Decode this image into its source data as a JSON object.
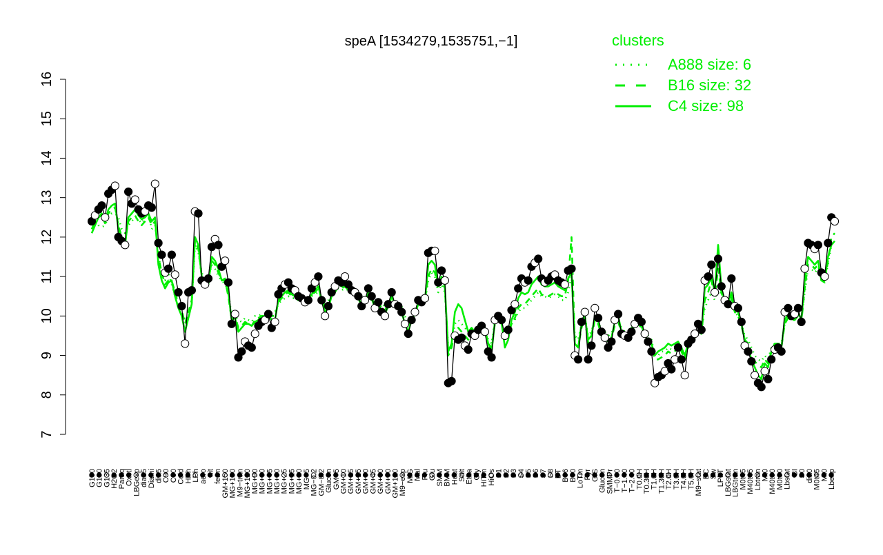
{
  "chart_data": {
    "type": "line",
    "title": "speA [1534279,1535751,−1]",
    "xlabel": "",
    "ylabel": "",
    "ylim": [
      7,
      16
    ],
    "yticks": [
      "7",
      "8",
      "9",
      "10",
      "11",
      "12",
      "13",
      "14",
      "15",
      "16"
    ],
    "grid": false,
    "legend_position": "top-right",
    "legend_title": "clusters",
    "colors": {
      "cluster": "#00ee00",
      "points_line": "#000000",
      "point_fill_open": "#ffffff",
      "point_fill_solid": "#000000"
    },
    "legend": [
      {
        "label": "A888 size: 6",
        "style": "dotted"
      },
      {
        "label": "B16 size: 32",
        "style": "dashed"
      },
      {
        "label": "C4 size: 98",
        "style": "solid"
      }
    ],
    "x_tick_labels": [
      "G150",
      "G180",
      "G135",
      "H2O2",
      "Paraq",
      "Oxctl",
      "LBGexp",
      "dia15",
      "Diami",
      "dia5",
      "C90",
      "C30",
      "Cold",
      "HPh",
      "LPh",
      "aero",
      "nit",
      "ferm",
      "GM+150",
      "MG+150",
      "M9−tran",
      "MG+120",
      "MG+90",
      "MG+60",
      "MG+45",
      "MG+30",
      "MG+25",
      "MG+15",
      "MG+10",
      "MG+5",
      "MG−0.2",
      "GM−0.2",
      "Glucon",
      "GM+5",
      "GM+10",
      "GM+15",
      "GM+25",
      "GM+30",
      "GM+45",
      "GM+60",
      "GM+90",
      "GM+120",
      "M9−exp",
      "M/G",
      "Mal",
      "Fru",
      "Glu",
      "SMM",
      "BMM",
      "Heat",
      "Salt",
      "Etha",
      "Gly",
      "HiTm",
      "HiOs",
      "S1",
      "S2",
      "S3",
      "S4",
      "S5",
      "S6",
      "S7",
      "S8",
      "BT",
      "B36",
      "B60",
      "LoTm",
      "Pyr",
      "G/S",
      "Glucon",
      "SMMPr",
      "T−0.40",
      "T−1.40",
      "T−2.40",
      "T0.0H",
      "T0.30H",
      "T1.0H",
      "T1.30H",
      "T2.0H",
      "T3.0H",
      "T4.0H",
      "T5.0H",
      "M9−stat",
      "BC",
      "Sw",
      "LPhT",
      "LBGstat",
      "LBGtran",
      "M0t45",
      "M40t45",
      "Lbtran",
      "Mt0",
      "M40t90",
      "M0t90",
      "Lbstat",
      "BI",
      "S0",
      "dia0",
      "M0t45",
      "Mt0",
      "Lbexp"
    ],
    "x_tick_labels_shown": [
      "G150",
      "G180",
      "G135",
      "H2O2",
      "Paraq",
      "Oxctl",
      "LBGexp",
      "dia15",
      "Diami",
      "dia5",
      "C90",
      "C30",
      "Cold",
      "HPh",
      "LPh",
      "aero",
      "nit",
      "ferm",
      "GM+150",
      "MG+150",
      "M9−tran",
      "MG+120",
      "MG+90",
      "MG+60",
      "MG+45",
      "MG+30",
      "MG+25",
      "MG+15",
      "MG+10",
      "MG+5",
      "MG−0.2",
      "GM−0.2",
      "Glucon",
      "GM+5",
      "GM+10",
      "GM+15",
      "GM+25",
      "GM+30",
      "GM+45",
      "GM+60",
      "GM+90",
      "GM+120",
      "M9−exp",
      "M/G",
      "Mal",
      "Fru",
      "Glu",
      "SMM",
      "BMM",
      "Heat",
      "Salt",
      "Etha",
      "Gly",
      "HiTm",
      "HiOs",
      "S1",
      "S2",
      "S3",
      "S4",
      "S5",
      "S6",
      "S7",
      "S8",
      "BT",
      "B36",
      "B60",
      "LoTm",
      "Pyr",
      "G/S",
      "Glucon",
      "SMMPr",
      "T−0.40",
      "T−1.40",
      "T−2.40",
      "T0.0H",
      "T0.30H",
      "T1.0H",
      "T1.30H",
      "T2.0H",
      "T3.0H",
      "T4.0H",
      "T5.0H",
      "M9−stat",
      "BC",
      "Sw",
      "LPhT",
      "LBGstat",
      "LBGtran",
      "M0t45",
      "M40t45",
      "Lbtran",
      "Mt0",
      "M40t90",
      "M0t90",
      "Lbstat",
      "BI",
      "S0",
      "dia0",
      "M0t45",
      "Mt0",
      "Lbexp"
    ],
    "series": [
      {
        "values": [
          12.4,
          12.55,
          12.7,
          12.8,
          12.5,
          13.1,
          13.2,
          13.3,
          12.0,
          11.9,
          11.8,
          13.15,
          12.85,
          12.95,
          12.7,
          12.6,
          12.65,
          12.8,
          12.75,
          13.35,
          11.85,
          11.55,
          11.1,
          11.2,
          11.55,
          11.05,
          10.6,
          10.25,
          9.3,
          10.6,
          10.65,
          12.65,
          12.6,
          10.9,
          10.8,
          10.95,
          11.75,
          11.95,
          11.8,
          11.25,
          11.4,
          10.85,
          9.8,
          10.05,
          8.95,
          9.1,
          9.35,
          9.25,
          9.2,
          9.55,
          9.75,
          9.85,
          9.9,
          10.05,
          9.7,
          9.85,
          10.55,
          10.7,
          10.8,
          10.85,
          10.7,
          10.65,
          10.5,
          10.45,
          10.35,
          10.4,
          10.7,
          10.85,
          11.0,
          10.4,
          10.0,
          10.25,
          10.6,
          10.75,
          10.9,
          10.85,
          11.0,
          10.8,
          10.65,
          10.6,
          10.5,
          10.25,
          10.4,
          10.7,
          10.5,
          10.2,
          10.35,
          10.1,
          10.0,
          10.3,
          10.6,
          10.3,
          10.25,
          10.1,
          9.8,
          9.55,
          9.9,
          10.1,
          10.4,
          10.35,
          10.45,
          11.6,
          11.65,
          11.65,
          10.85,
          11.15,
          10.9,
          8.3,
          8.35,
          9.5,
          9.4,
          9.45,
          9.25,
          9.15,
          9.55,
          9.5,
          9.65,
          9.75,
          9.6,
          9.1,
          8.95,
          9.9,
          10.0,
          9.9,
          9.5,
          9.65,
          10.15,
          10.3,
          10.7,
          10.95,
          10.85,
          10.9,
          11.25,
          11.35,
          11.45,
          10.95,
          10.85,
          10.9,
          11.0,
          11.05,
          10.9,
          10.85,
          10.8,
          11.15,
          11.2,
          9.0,
          8.9,
          9.85,
          10.1,
          8.9,
          9.25,
          10.2,
          9.95,
          9.6,
          9.45,
          9.2,
          9.35,
          9.9,
          10.05,
          9.55,
          9.5,
          9.45,
          9.6,
          9.8,
          9.95,
          9.85,
          9.55,
          9.35,
          9.1,
          8.3,
          8.45,
          8.5,
          8.6,
          8.8,
          8.65,
          8.9,
          9.2,
          8.9,
          8.5,
          9.3,
          9.4,
          9.55,
          9.8,
          9.65,
          10.9,
          11.0,
          11.3,
          10.6,
          11.45,
          10.75,
          10.4,
          10.3,
          10.95,
          10.25,
          10.2,
          9.85,
          9.25,
          9.1,
          8.85,
          8.5,
          8.3,
          8.2,
          8.6,
          8.4,
          8.9,
          9.15,
          9.2,
          9.1,
          10.1,
          10.2,
          10.0,
          10.05,
          10.2,
          9.85,
          11.2,
          11.85,
          11.8,
          11.7,
          11.8,
          11.1,
          11.0,
          11.85,
          12.5,
          12.4
        ]
      },
      {
        "name": "A888 size: 6",
        "style": "dotted",
        "values": [
          12.4,
          12.6,
          12.3,
          12.25,
          12.3,
          12.5,
          12.6,
          12.6,
          12.5,
          12.2,
          12.1,
          12.3,
          12.4,
          12.5,
          12.45,
          12.35,
          12.5,
          12.6,
          12.2,
          12.3,
          11.6,
          11.0,
          10.9,
          11.1,
          10.8,
          10.5,
          10.2,
          10.1,
          9.9,
          10.0,
          10.3,
          11.8,
          11.6,
          11.1,
          10.9,
          10.95,
          11.3,
          11.2,
          11.0,
          10.9,
          10.8,
          10.6,
          10.0,
          10.0,
          9.9,
          9.85,
          9.95,
          9.9,
          9.85,
          10.0,
          10.0,
          10.05,
          9.95,
          10.05,
          10.1,
          10.1,
          10.3,
          10.4,
          10.45,
          10.5,
          10.45,
          10.45,
          10.4,
          10.4,
          10.4,
          10.45,
          10.5,
          10.55,
          10.6,
          10.5,
          10.4,
          10.4,
          10.55,
          10.6,
          10.7,
          10.65,
          10.7,
          10.65,
          10.6,
          10.55,
          10.5,
          10.4,
          10.45,
          10.5,
          10.4,
          10.35,
          10.4,
          10.3,
          10.25,
          10.3,
          10.45,
          10.35,
          10.3,
          10.25,
          10.0,
          9.8,
          10.0,
          10.1,
          10.25,
          10.3,
          10.35,
          10.9,
          11.1,
          11.0,
          10.6,
          10.8,
          10.6,
          9.2,
          9.3,
          9.8,
          9.9,
          9.8,
          9.7,
          9.6,
          9.7,
          9.6,
          9.7,
          9.8,
          9.7,
          9.4,
          9.3,
          9.9,
          9.95,
          9.8,
          9.5,
          9.6,
          9.8,
          9.9,
          10.1,
          10.2,
          10.2,
          10.3,
          10.4,
          10.5,
          10.6,
          10.5,
          10.5,
          10.45,
          10.5,
          10.55,
          10.5,
          10.4,
          10.4,
          10.6,
          11.0,
          9.5,
          9.4,
          9.8,
          10.0,
          9.5,
          9.6,
          9.95,
          9.9,
          9.6,
          9.6,
          9.5,
          9.55,
          9.8,
          9.9,
          9.7,
          9.6,
          9.6,
          9.7,
          9.8,
          9.85,
          9.8,
          9.6,
          9.5,
          9.4,
          9.0,
          9.0,
          9.1,
          9.1,
          9.2,
          9.15,
          9.2,
          9.3,
          9.2,
          9.0,
          9.3,
          9.4,
          9.5,
          9.6,
          9.6,
          10.2,
          10.4,
          10.6,
          10.4,
          10.8,
          10.5,
          10.3,
          10.2,
          10.4,
          10.1,
          10.0,
          9.8,
          9.5,
          9.4,
          9.2,
          9.0,
          8.9,
          8.85,
          9.0,
          8.9,
          9.2,
          9.3,
          9.3,
          9.3,
          9.8,
          9.95,
          9.9,
          9.9,
          10.0,
          9.9,
          10.6,
          11.2,
          11.2,
          11.1,
          11.2,
          10.9,
          10.9,
          11.3,
          11.8,
          11.9
        ]
      },
      {
        "name": "B16 size: 32",
        "style": "dashed",
        "values": [
          12.2,
          12.4,
          12.5,
          12.55,
          12.35,
          12.6,
          12.7,
          12.75,
          12.3,
          12.0,
          11.9,
          12.4,
          12.5,
          12.55,
          12.4,
          12.3,
          12.4,
          12.5,
          12.3,
          12.4,
          11.5,
          11.1,
          10.8,
          10.9,
          10.9,
          10.6,
          10.3,
          10.15,
          9.8,
          10.1,
          10.4,
          11.9,
          11.7,
          11.0,
          10.8,
          10.85,
          11.4,
          11.3,
          11.1,
          10.9,
          10.9,
          10.5,
          9.9,
          10.0,
          9.7,
          9.75,
          9.85,
          9.8,
          9.75,
          9.9,
          9.95,
          10.0,
          10.0,
          10.05,
          10.0,
          10.0,
          10.35,
          10.45,
          10.55,
          10.6,
          10.5,
          10.5,
          10.45,
          10.45,
          10.4,
          10.45,
          10.55,
          10.6,
          10.7,
          10.45,
          10.25,
          10.3,
          10.5,
          10.6,
          10.75,
          10.7,
          10.75,
          10.65,
          10.6,
          10.55,
          10.45,
          10.3,
          10.4,
          10.55,
          10.45,
          10.3,
          10.35,
          10.2,
          10.15,
          10.3,
          10.5,
          10.35,
          10.3,
          10.2,
          9.95,
          9.7,
          9.95,
          10.1,
          10.3,
          10.3,
          10.4,
          11.0,
          11.2,
          11.1,
          10.7,
          10.9,
          10.7,
          9.0,
          9.2,
          9.6,
          9.7,
          9.6,
          9.5,
          9.4,
          9.55,
          9.5,
          9.6,
          9.7,
          9.6,
          9.3,
          9.2,
          9.8,
          9.9,
          9.8,
          9.4,
          9.5,
          9.8,
          9.95,
          10.2,
          10.3,
          10.3,
          10.4,
          10.5,
          10.6,
          10.7,
          10.55,
          10.5,
          10.5,
          10.55,
          10.6,
          10.55,
          10.5,
          10.5,
          10.9,
          12.0,
          9.3,
          9.2,
          9.7,
          9.95,
          9.3,
          9.45,
          9.9,
          9.8,
          9.5,
          9.45,
          9.35,
          9.45,
          9.75,
          9.85,
          9.6,
          9.5,
          9.5,
          9.6,
          9.7,
          9.8,
          9.7,
          9.5,
          9.4,
          9.3,
          8.9,
          8.9,
          8.95,
          9.0,
          9.1,
          9.05,
          9.1,
          9.25,
          9.1,
          8.9,
          9.2,
          9.35,
          9.45,
          9.6,
          9.55,
          10.4,
          10.6,
          10.9,
          10.5,
          11.2,
          10.6,
          10.3,
          10.2,
          10.5,
          10.1,
          10.0,
          9.75,
          9.4,
          9.3,
          9.05,
          8.85,
          8.75,
          8.7,
          8.9,
          8.8,
          9.1,
          9.25,
          9.25,
          9.2,
          9.8,
          9.95,
          9.9,
          9.9,
          10.0,
          9.85,
          10.7,
          11.3,
          11.3,
          11.2,
          11.3,
          10.9,
          10.85,
          11.4,
          12.0,
          12.1
        ]
      },
      {
        "name": "C4 size: 98",
        "style": "solid",
        "values": [
          12.1,
          12.3,
          12.5,
          12.6,
          12.4,
          12.7,
          12.8,
          12.85,
          12.2,
          11.9,
          11.8,
          12.5,
          12.6,
          12.7,
          12.55,
          12.45,
          12.5,
          12.6,
          12.4,
          12.5,
          11.3,
          10.9,
          10.7,
          10.85,
          10.9,
          10.5,
          10.2,
          10.0,
          9.6,
          9.95,
          10.3,
          12.0,
          11.8,
          11.0,
          10.75,
          10.8,
          11.5,
          11.4,
          11.2,
          10.9,
          10.95,
          10.6,
          9.9,
          9.95,
          9.6,
          9.7,
          9.8,
          9.8,
          9.75,
          9.85,
          9.9,
          10.0,
          10.0,
          10.05,
          9.9,
          9.9,
          10.4,
          10.5,
          10.6,
          10.65,
          10.55,
          10.5,
          10.4,
          10.4,
          10.35,
          10.4,
          10.55,
          10.65,
          10.75,
          10.4,
          10.1,
          10.2,
          10.5,
          10.6,
          10.8,
          10.75,
          10.85,
          10.7,
          10.6,
          10.55,
          10.45,
          10.25,
          10.35,
          10.6,
          10.45,
          10.2,
          10.3,
          10.1,
          10.05,
          10.25,
          10.5,
          10.3,
          10.25,
          10.1,
          9.8,
          9.6,
          9.9,
          10.05,
          10.3,
          10.3,
          10.4,
          11.3,
          11.4,
          11.3,
          10.75,
          11.0,
          10.75,
          9.1,
          9.3,
          10.1,
          10.3,
          10.2,
          9.9,
          9.6,
          9.7,
          9.6,
          9.7,
          9.8,
          9.7,
          9.3,
          9.1,
          9.85,
          9.95,
          9.85,
          9.2,
          9.4,
          9.9,
          10.1,
          10.45,
          10.6,
          10.55,
          10.6,
          10.8,
          10.9,
          11.0,
          10.8,
          10.75,
          10.75,
          10.8,
          10.85,
          10.75,
          10.7,
          10.65,
          10.95,
          11.1,
          9.3,
          9.2,
          9.8,
          10.0,
          9.4,
          9.5,
          10.0,
          9.9,
          9.5,
          9.45,
          9.35,
          9.45,
          9.85,
          10.0,
          9.6,
          9.55,
          9.5,
          9.6,
          9.75,
          9.85,
          9.75,
          9.5,
          9.4,
          9.3,
          9.0,
          9.1,
          9.15,
          9.2,
          9.3,
          9.25,
          9.3,
          9.35,
          9.2,
          9.0,
          9.3,
          9.4,
          9.5,
          9.6,
          9.55,
          10.7,
          10.8,
          11.0,
          10.6,
          11.8,
          10.7,
          10.4,
          10.3,
          10.6,
          10.2,
          10.1,
          9.8,
          9.4,
          9.2,
          8.9,
          8.7,
          8.5,
          8.4,
          8.8,
          8.7,
          9.1,
          9.3,
          9.3,
          9.2,
          9.9,
          10.05,
          10.0,
          10.0,
          10.1,
          9.9,
          10.9,
          11.5,
          11.4,
          11.3,
          11.4,
          10.9,
          10.9,
          11.5,
          11.8,
          11.9
        ]
      }
    ]
  }
}
